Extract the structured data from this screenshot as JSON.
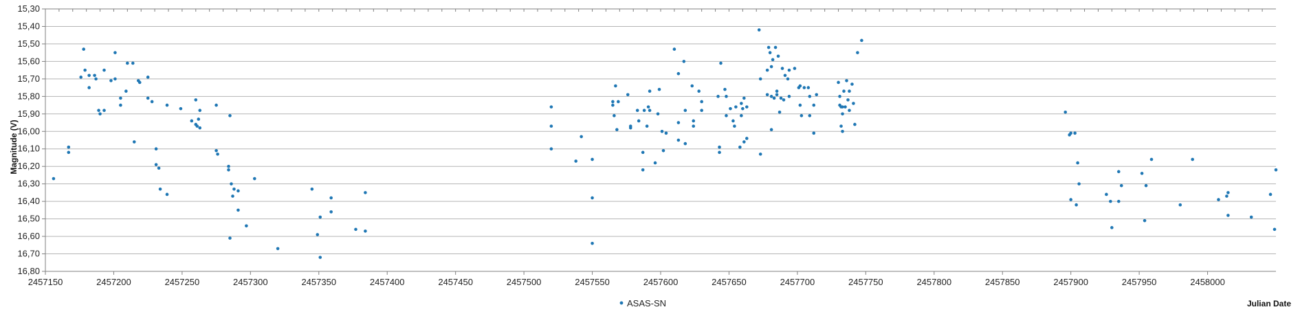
{
  "chart_data": {
    "type": "scatter",
    "title": "",
    "xlabel": "Julian Date",
    "ylabel": "Magnitude (V)",
    "xlim": [
      2457150,
      2458050
    ],
    "ylim": [
      15.3,
      16.8
    ],
    "y_inverted": true,
    "grid": true,
    "legend_position": "bottom-center",
    "x_ticks": [
      2457150,
      2457200,
      2457250,
      2457300,
      2457350,
      2457400,
      2457450,
      2457500,
      2457550,
      2457600,
      2457650,
      2457700,
      2457750,
      2457800,
      2457850,
      2457900,
      2457950,
      2458000
    ],
    "x_tick_labels": [
      "2457150",
      "2457200",
      "2457250",
      "2457300",
      "2457350",
      "2457400",
      "2457450",
      "2457500",
      "2457550",
      "2457600",
      "2457650",
      "2457700",
      "2457750",
      "2457800",
      "2457850",
      "2457900",
      "2457950",
      "2458000"
    ],
    "y_ticks": [
      15.3,
      15.4,
      15.5,
      15.6,
      15.7,
      15.8,
      15.9,
      16.0,
      16.1,
      16.2,
      16.3,
      16.4,
      16.5,
      16.6,
      16.7,
      16.8
    ],
    "y_tick_labels": [
      "15,30",
      "15,40",
      "15,50",
      "15,60",
      "15,70",
      "15,80",
      "15,90",
      "16,00",
      "16,10",
      "16,20",
      "16,30",
      "16,40",
      "16,50",
      "16,60",
      "16,70",
      "16,80"
    ],
    "colors": {
      "series": "#1f77b4",
      "grid": "#b5b5b5",
      "axis": "#7f7f7f"
    },
    "series": [
      {
        "name": "ASAS-SN",
        "marker": "dot",
        "points": [
          [
            2457156,
            16.27
          ],
          [
            2457167,
            16.09
          ],
          [
            2457167,
            16.12
          ],
          [
            2457176,
            15.69
          ],
          [
            2457178,
            15.53
          ],
          [
            2457179,
            15.65
          ],
          [
            2457182,
            15.68
          ],
          [
            2457182,
            15.75
          ],
          [
            2457186,
            15.68
          ],
          [
            2457187,
            15.7
          ],
          [
            2457189,
            15.88
          ],
          [
            2457190,
            15.9
          ],
          [
            2457193,
            15.65
          ],
          [
            2457193,
            15.88
          ],
          [
            2457198,
            15.71
          ],
          [
            2457201,
            15.55
          ],
          [
            2457201,
            15.7
          ],
          [
            2457205,
            15.81
          ],
          [
            2457205,
            15.85
          ],
          [
            2457209,
            15.77
          ],
          [
            2457210,
            15.61
          ],
          [
            2457214,
            15.61
          ],
          [
            2457215,
            16.06
          ],
          [
            2457218,
            15.71
          ],
          [
            2457219,
            15.72
          ],
          [
            2457225,
            15.81
          ],
          [
            2457225,
            15.69
          ],
          [
            2457228,
            15.83
          ],
          [
            2457231,
            16.1
          ],
          [
            2457231,
            16.19
          ],
          [
            2457233,
            16.21
          ],
          [
            2457234,
            16.33
          ],
          [
            2457239,
            15.85
          ],
          [
            2457239,
            16.36
          ],
          [
            2457249,
            15.87
          ],
          [
            2457257,
            15.94
          ],
          [
            2457260,
            15.82
          ],
          [
            2457260,
            15.96
          ],
          [
            2457261,
            15.97
          ],
          [
            2457262,
            15.93
          ],
          [
            2457263,
            15.98
          ],
          [
            2457263,
            15.88
          ],
          [
            2457275,
            15.85
          ],
          [
            2457275,
            16.11
          ],
          [
            2457276,
            16.13
          ],
          [
            2457284,
            16.2
          ],
          [
            2457284,
            16.22
          ],
          [
            2457285,
            15.91
          ],
          [
            2457286,
            16.3
          ],
          [
            2457287,
            16.37
          ],
          [
            2457288,
            16.33
          ],
          [
            2457291,
            16.34
          ],
          [
            2457291,
            16.45
          ],
          [
            2457285,
            16.61
          ],
          [
            2457297,
            16.54
          ],
          [
            2457303,
            16.27
          ],
          [
            2457320,
            16.67
          ],
          [
            2457345,
            16.33
          ],
          [
            2457349,
            16.59
          ],
          [
            2457351,
            16.49
          ],
          [
            2457351,
            16.72
          ],
          [
            2457359,
            16.46
          ],
          [
            2457359,
            16.38
          ],
          [
            2457377,
            16.56
          ],
          [
            2457384,
            16.57
          ],
          [
            2457384,
            16.35
          ],
          [
            2457520,
            15.86
          ],
          [
            2457520,
            15.97
          ],
          [
            2457520,
            16.1
          ],
          [
            2457538,
            16.17
          ],
          [
            2457542,
            16.03
          ],
          [
            2457550,
            16.16
          ],
          [
            2457550,
            16.38
          ],
          [
            2457550,
            16.64
          ],
          [
            2457565,
            15.83
          ],
          [
            2457565,
            15.85
          ],
          [
            2457566,
            15.91
          ],
          [
            2457567,
            15.74
          ],
          [
            2457568,
            15.99
          ],
          [
            2457569,
            15.83
          ],
          [
            2457576,
            15.79
          ],
          [
            2457578,
            15.97
          ],
          [
            2457578,
            15.98
          ],
          [
            2457583,
            15.88
          ],
          [
            2457584,
            15.94
          ],
          [
            2457587,
            16.22
          ],
          [
            2457587,
            16.12
          ],
          [
            2457588,
            15.88
          ],
          [
            2457590,
            15.97
          ],
          [
            2457591,
            15.86
          ],
          [
            2457592,
            15.88
          ],
          [
            2457592,
            15.77
          ],
          [
            2457596,
            16.18
          ],
          [
            2457598,
            15.9
          ],
          [
            2457599,
            15.76
          ],
          [
            2457601,
            16.0
          ],
          [
            2457602,
            16.11
          ],
          [
            2457604,
            16.01
          ],
          [
            2457610,
            15.53
          ],
          [
            2457613,
            15.67
          ],
          [
            2457613,
            15.95
          ],
          [
            2457613,
            16.05
          ],
          [
            2457617,
            15.6
          ],
          [
            2457618,
            15.88
          ],
          [
            2457618,
            16.07
          ],
          [
            2457623,
            15.74
          ],
          [
            2457624,
            15.94
          ],
          [
            2457624,
            15.97
          ],
          [
            2457628,
            15.77
          ],
          [
            2457630,
            15.88
          ],
          [
            2457630,
            15.83
          ],
          [
            2457642,
            15.8
          ],
          [
            2457643,
            16.09
          ],
          [
            2457643,
            16.12
          ],
          [
            2457644,
            15.61
          ],
          [
            2457647,
            15.76
          ],
          [
            2457648,
            15.8
          ],
          [
            2457648,
            15.91
          ],
          [
            2457651,
            15.87
          ],
          [
            2457653,
            15.94
          ],
          [
            2457654,
            15.97
          ],
          [
            2457655,
            15.86
          ],
          [
            2457658,
            16.09
          ],
          [
            2457659,
            15.84
          ],
          [
            2457659,
            15.91
          ],
          [
            2457660,
            15.87
          ],
          [
            2457661,
            16.06
          ],
          [
            2457661,
            15.81
          ],
          [
            2457663,
            16.04
          ],
          [
            2457663,
            15.86
          ],
          [
            2457672,
            15.42
          ],
          [
            2457673,
            15.7
          ],
          [
            2457673,
            16.13
          ],
          [
            2457678,
            15.65
          ],
          [
            2457678,
            15.79
          ],
          [
            2457679,
            15.52
          ],
          [
            2457680,
            15.55
          ],
          [
            2457681,
            15.63
          ],
          [
            2457681,
            15.8
          ],
          [
            2457681,
            15.99
          ],
          [
            2457682,
            15.59
          ],
          [
            2457683,
            15.81
          ],
          [
            2457684,
            15.52
          ],
          [
            2457685,
            15.79
          ],
          [
            2457685,
            15.77
          ],
          [
            2457686,
            15.57
          ],
          [
            2457687,
            15.89
          ],
          [
            2457688,
            15.81
          ],
          [
            2457689,
            15.64
          ],
          [
            2457690,
            15.82
          ],
          [
            2457691,
            15.68
          ],
          [
            2457693,
            15.7
          ],
          [
            2457694,
            15.8
          ],
          [
            2457694,
            15.65
          ],
          [
            2457698,
            15.64
          ],
          [
            2457701,
            15.75
          ],
          [
            2457702,
            15.74
          ],
          [
            2457702,
            15.85
          ],
          [
            2457703,
            15.91
          ],
          [
            2457705,
            15.75
          ],
          [
            2457708,
            15.75
          ],
          [
            2457709,
            15.8
          ],
          [
            2457709,
            15.91
          ],
          [
            2457712,
            15.85
          ],
          [
            2457712,
            16.01
          ],
          [
            2457714,
            15.79
          ],
          [
            2457730,
            15.72
          ],
          [
            2457731,
            15.8
          ],
          [
            2457731,
            15.85
          ],
          [
            2457732,
            15.86
          ],
          [
            2457732,
            15.97
          ],
          [
            2457733,
            15.86
          ],
          [
            2457733,
            16.0
          ],
          [
            2457733,
            15.9
          ],
          [
            2457734,
            15.77
          ],
          [
            2457735,
            15.86
          ],
          [
            2457736,
            15.71
          ],
          [
            2457737,
            15.82
          ],
          [
            2457738,
            15.77
          ],
          [
            2457738,
            15.88
          ],
          [
            2457740,
            15.73
          ],
          [
            2457741,
            15.84
          ],
          [
            2457742,
            15.96
          ],
          [
            2457744,
            15.55
          ],
          [
            2457747,
            15.48
          ],
          [
            2457896,
            15.89
          ],
          [
            2457899,
            16.02
          ],
          [
            2457900,
            16.01
          ],
          [
            2457900,
            16.39
          ],
          [
            2457903,
            16.01
          ],
          [
            2457904,
            16.42
          ],
          [
            2457905,
            16.18
          ],
          [
            2457906,
            16.3
          ],
          [
            2457926,
            16.36
          ],
          [
            2457929,
            16.4
          ],
          [
            2457930,
            16.55
          ],
          [
            2457935,
            16.23
          ],
          [
            2457935,
            16.4
          ],
          [
            2457937,
            16.31
          ],
          [
            2457952,
            16.24
          ],
          [
            2457954,
            16.51
          ],
          [
            2457955,
            16.31
          ],
          [
            2457959,
            16.16
          ],
          [
            2457980,
            16.42
          ],
          [
            2457989,
            16.16
          ],
          [
            2458008,
            16.39
          ],
          [
            2458014,
            16.37
          ],
          [
            2458015,
            16.48
          ],
          [
            2458015,
            16.35
          ],
          [
            2458032,
            16.49
          ],
          [
            2458046,
            16.36
          ],
          [
            2458049,
            16.56
          ],
          [
            2458050,
            16.22
          ]
        ]
      }
    ]
  }
}
